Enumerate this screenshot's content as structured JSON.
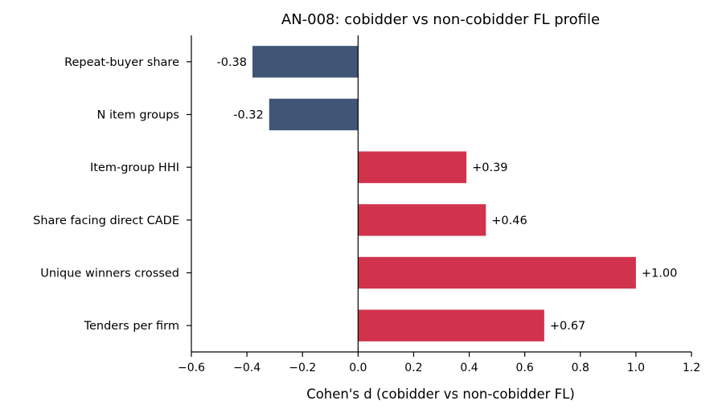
{
  "chart_data": {
    "type": "bar",
    "orientation": "horizontal",
    "title": "AN-008: cobidder vs non-cobidder FL profile",
    "xlabel": "Cohen's d (cobidder vs non-cobidder FL)",
    "ylabel": "",
    "xlim": [
      -0.6,
      1.2
    ],
    "xticks": [
      -0.6,
      -0.4,
      -0.2,
      0.0,
      0.2,
      0.4,
      0.6,
      0.8,
      1.0,
      1.2
    ],
    "xtick_labels": [
      "−0.6",
      "−0.4",
      "−0.2",
      "0.0",
      "0.2",
      "0.4",
      "0.6",
      "0.8",
      "1.0",
      "1.2"
    ],
    "categories": [
      "Repeat-buyer share",
      "N item groups",
      "Item-group HHI",
      "Share facing direct CADE",
      "Unique winners crossed",
      "Tenders per firm"
    ],
    "values": [
      -0.38,
      -0.32,
      0.39,
      0.46,
      1.0,
      0.67
    ],
    "value_labels": [
      "-0.38",
      "-0.32",
      "+0.39",
      "+0.46",
      "+1.00",
      "+0.67"
    ],
    "colors": {
      "negative": "#3f5676",
      "positive": "#d1334d"
    },
    "grid": false,
    "zero_line": true
  }
}
